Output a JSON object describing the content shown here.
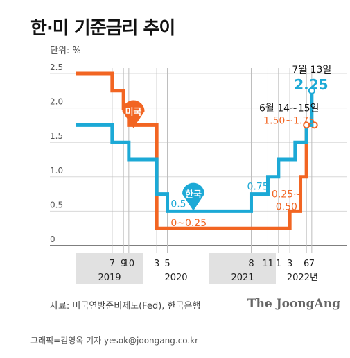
{
  "header": {
    "title": "한·미 기준금리 추이",
    "unit": "단위: %"
  },
  "footer": {
    "source": "자료: 미국연방준비제도(Fed), 한국은행",
    "brand": "The JoongAng",
    "credit": "그래픽=김영옥 기자 yesok@joongang.co.kr"
  },
  "chart_data": {
    "type": "line",
    "title": "한·미 기준금리 추이",
    "ylabel": "단위: %",
    "ylim": [
      0,
      2.5
    ],
    "yticks": [
      "0",
      "0.5",
      "1.0",
      "1.5",
      "2.0",
      "2.5"
    ],
    "x_domain": [
      2019.0,
      2022.75
    ],
    "month_ticks": [
      {
        "label": "7",
        "x": 2019.54
      },
      {
        "label": "9",
        "x": 2019.71
      },
      {
        "label": "10",
        "x": 2019.79
      },
      {
        "label": "3",
        "x": 2020.21
      },
      {
        "label": "5",
        "x": 2020.37
      },
      {
        "label": "8",
        "x": 2021.63
      },
      {
        "label": "11",
        "x": 2021.88
      },
      {
        "label": "1",
        "x": 2022.04
      },
      {
        "label": "3",
        "x": 2022.21
      },
      {
        "label": "6",
        "x": 2022.46
      },
      {
        "label": "7",
        "x": 2022.54
      }
    ],
    "year_labels": [
      {
        "label": "2019",
        "x": 2019.5,
        "shaded": true
      },
      {
        "label": "2020",
        "x": 2020.5,
        "shaded": false
      },
      {
        "label": "2021",
        "x": 2021.5,
        "shaded": true
      },
      {
        "label": "2022년",
        "x": 2022.4,
        "shaded": false
      }
    ],
    "series": [
      {
        "name": "미국",
        "color": "#f26522",
        "points": [
          {
            "x": 2019.0,
            "y": 2.5
          },
          {
            "x": 2019.54,
            "y": 2.25
          },
          {
            "x": 2019.71,
            "y": 2.0
          },
          {
            "x": 2019.79,
            "y": 1.75
          },
          {
            "x": 2020.21,
            "y": 0.25
          },
          {
            "x": 2022.21,
            "y": 0.5
          },
          {
            "x": 2022.37,
            "y": 1.0
          },
          {
            "x": 2022.46,
            "y": 1.75
          },
          {
            "x": 2022.58,
            "y": 1.75
          }
        ],
        "marker_x": 2019.86,
        "marker_y": 1.95
      },
      {
        "name": "한국",
        "color": "#1ca9d6",
        "points": [
          {
            "x": 2019.0,
            "y": 1.75
          },
          {
            "x": 2019.54,
            "y": 1.5
          },
          {
            "x": 2019.79,
            "y": 1.25
          },
          {
            "x": 2020.21,
            "y": 0.75
          },
          {
            "x": 2020.37,
            "y": 0.5
          },
          {
            "x": 2021.63,
            "y": 0.75
          },
          {
            "x": 2021.88,
            "y": 1.0
          },
          {
            "x": 2022.04,
            "y": 1.25
          },
          {
            "x": 2022.29,
            "y": 1.5
          },
          {
            "x": 2022.46,
            "y": 1.75
          },
          {
            "x": 2022.54,
            "y": 2.25
          }
        ],
        "marker_x": 2020.76,
        "marker_y": 0.75
      }
    ],
    "annotations": [
      {
        "text": "0.5",
        "x": 2020.42,
        "y": 0.56,
        "color": "#1ca9d6",
        "size": 14,
        "weight": "normal",
        "anchor": "start"
      },
      {
        "text": "0~0.25",
        "x": 2020.42,
        "y": 0.28,
        "color": "#f26522",
        "size": 14,
        "weight": "normal",
        "anchor": "start"
      },
      {
        "text": "0.75",
        "x": 2021.73,
        "y": 0.81,
        "color": "#1ca9d6",
        "size": 14,
        "weight": "normal",
        "anchor": "middle"
      },
      {
        "text": "0.25~",
        "x": 2022.16,
        "y": 0.7,
        "color": "#f26522",
        "size": 14,
        "weight": "normal",
        "anchor": "middle"
      },
      {
        "text": "0.50",
        "x": 2022.16,
        "y": 0.52,
        "color": "#f26522",
        "size": 14,
        "weight": "normal",
        "anchor": "middle"
      },
      {
        "text": "6월 14~15일",
        "x": 2022.2,
        "y": 1.95,
        "color": "#111111",
        "size": 14,
        "weight": "normal",
        "anchor": "middle"
      },
      {
        "text": "1.50~1.75",
        "x": 2022.2,
        "y": 1.77,
        "color": "#f26522",
        "size": 14,
        "weight": "normal",
        "anchor": "middle"
      },
      {
        "text": "7월 13일",
        "x": 2022.54,
        "y": 2.51,
        "color": "#111111",
        "size": 14,
        "weight": "normal",
        "anchor": "middle"
      },
      {
        "text": "2.25",
        "x": 2022.53,
        "y": 2.27,
        "color": "#1ca9d6",
        "size": 20,
        "weight": "bold",
        "anchor": "middle"
      }
    ]
  }
}
